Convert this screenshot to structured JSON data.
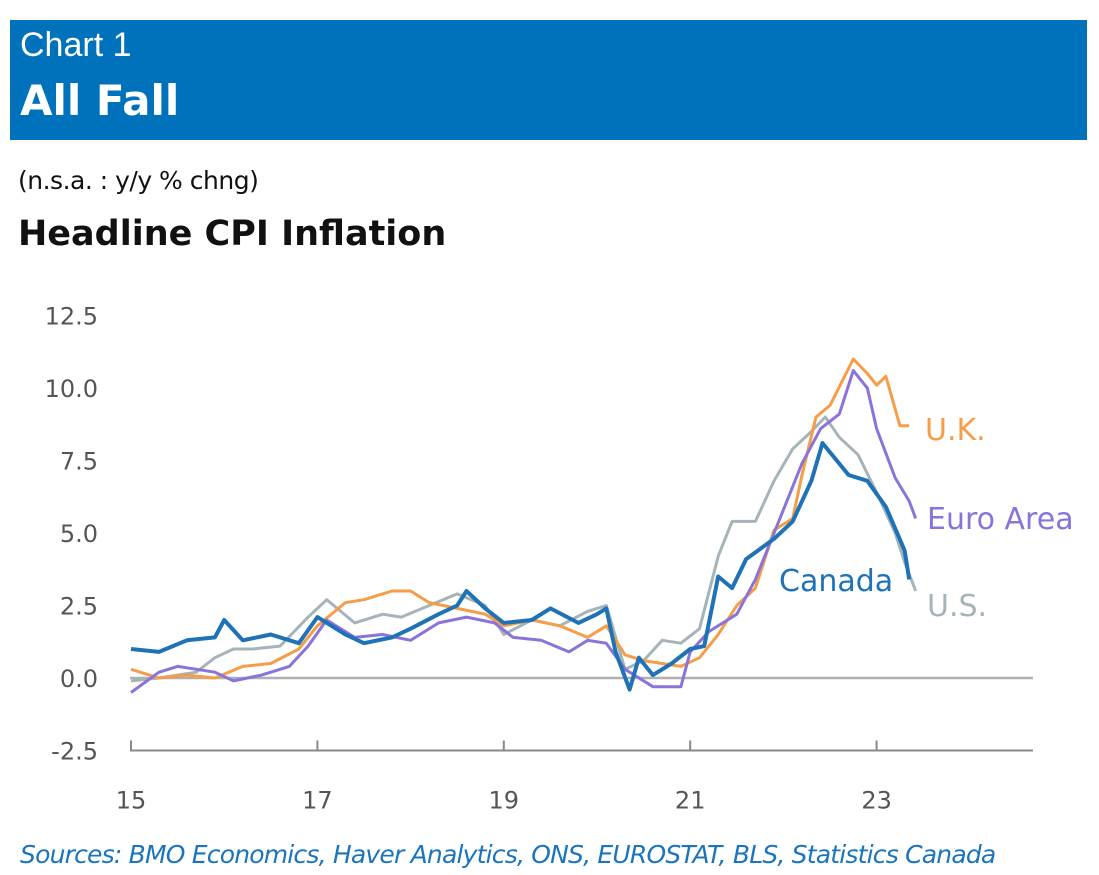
{
  "header": {
    "chart_number": "Chart 1",
    "headline": "All Fall"
  },
  "colors": {
    "header": "#0072bc",
    "uk": "#f59d48",
    "euro": "#8a73d9",
    "us": "#a5b4b9",
    "canada": "#1f72b6"
  },
  "sources": "Sources: BMO Economics, Haver Analytics, ONS, EUROSTAT, BLS, Statistics Canada",
  "chart_data": {
    "type": "line",
    "title": "Headline CPI Inflation",
    "subtitle": "(n.s.a. : y/y % chng)",
    "xlabel": "",
    "ylabel": "",
    "xlim": [
      2015,
      2024.7
    ],
    "ylim": [
      -2.5,
      12.5
    ],
    "yticks": [
      "12.5",
      "10.0",
      "7.5",
      "5.0",
      "2.5",
      "0.0",
      "-2.5"
    ],
    "ytick_values": [
      12.5,
      10,
      7.5,
      5,
      2.5,
      0,
      -2.5
    ],
    "xticks": [
      "15",
      "17",
      "19",
      "21",
      "23"
    ],
    "xtick_values": [
      2015,
      2017,
      2019,
      2021,
      2023
    ],
    "series": [
      {
        "name": "U.S.",
        "key": "us",
        "x": [
          2015.0,
          2015.3,
          2015.7,
          2015.9,
          2016.1,
          2016.3,
          2016.6,
          2016.9,
          2017.1,
          2017.4,
          2017.7,
          2017.9,
          2018.2,
          2018.5,
          2018.8,
          2019.0,
          2019.3,
          2019.6,
          2019.9,
          2020.1,
          2020.3,
          2020.5,
          2020.7,
          2020.9,
          2021.1,
          2021.3,
          2021.45,
          2021.7,
          2021.9,
          2022.1,
          2022.3,
          2022.45,
          2022.6,
          2022.8,
          2023.0,
          2023.2,
          2023.3,
          2023.42
        ],
        "y": [
          -0.1,
          0.0,
          0.2,
          0.7,
          1.0,
          1.0,
          1.1,
          2.1,
          2.7,
          1.9,
          2.2,
          2.1,
          2.5,
          2.9,
          2.5,
          1.5,
          2.0,
          1.8,
          2.3,
          2.5,
          0.3,
          0.6,
          1.3,
          1.2,
          1.7,
          4.2,
          5.4,
          5.4,
          6.8,
          7.9,
          8.5,
          9.0,
          8.3,
          7.7,
          6.4,
          5.0,
          4.0,
          3.0
        ]
      },
      {
        "name": "U.K.",
        "key": "uk",
        "x": [
          2015.0,
          2015.3,
          2015.6,
          2015.9,
          2016.2,
          2016.5,
          2016.8,
          2017.0,
          2017.3,
          2017.5,
          2017.8,
          2018.0,
          2018.2,
          2018.5,
          2018.8,
          2019.0,
          2019.3,
          2019.6,
          2019.9,
          2020.1,
          2020.3,
          2020.5,
          2020.7,
          2020.9,
          2021.1,
          2021.3,
          2021.5,
          2021.7,
          2021.9,
          2022.1,
          2022.2,
          2022.35,
          2022.5,
          2022.75,
          2022.9,
          2023.0,
          2023.1,
          2023.25,
          2023.35
        ],
        "y": [
          0.3,
          0.0,
          0.1,
          0.0,
          0.4,
          0.5,
          1.0,
          1.8,
          2.6,
          2.7,
          3.0,
          3.0,
          2.6,
          2.4,
          2.2,
          1.8,
          2.0,
          1.8,
          1.4,
          1.8,
          0.8,
          0.6,
          0.5,
          0.4,
          0.7,
          1.5,
          2.5,
          3.1,
          5.1,
          5.5,
          7.0,
          9.0,
          9.4,
          11.0,
          10.5,
          10.1,
          10.4,
          8.7,
          8.7
        ]
      },
      {
        "name": "Euro Area",
        "key": "euro",
        "x": [
          2015.0,
          2015.3,
          2015.5,
          2015.9,
          2016.1,
          2016.4,
          2016.7,
          2016.9,
          2017.1,
          2017.4,
          2017.7,
          2018.0,
          2018.3,
          2018.6,
          2018.9,
          2019.1,
          2019.4,
          2019.7,
          2019.9,
          2020.1,
          2020.3,
          2020.6,
          2020.9,
          2021.0,
          2021.2,
          2021.5,
          2021.7,
          2021.9,
          2022.2,
          2022.4,
          2022.6,
          2022.75,
          2022.9,
          2023.0,
          2023.2,
          2023.35,
          2023.42
        ],
        "y": [
          -0.5,
          0.2,
          0.4,
          0.2,
          -0.1,
          0.1,
          0.4,
          1.1,
          2.0,
          1.4,
          1.5,
          1.3,
          1.9,
          2.1,
          1.9,
          1.4,
          1.3,
          0.9,
          1.3,
          1.2,
          0.3,
          -0.3,
          -0.3,
          0.9,
          1.6,
          2.2,
          3.4,
          5.0,
          7.4,
          8.6,
          9.1,
          10.6,
          10.0,
          8.6,
          6.9,
          6.1,
          5.5
        ]
      },
      {
        "name": "Canada",
        "key": "canada",
        "x": [
          2015.0,
          2015.3,
          2015.6,
          2015.9,
          2016.0,
          2016.2,
          2016.5,
          2016.8,
          2017.0,
          2017.3,
          2017.5,
          2017.8,
          2018.0,
          2018.3,
          2018.5,
          2018.6,
          2018.8,
          2019.0,
          2019.3,
          2019.5,
          2019.8,
          2020.0,
          2020.1,
          2020.2,
          2020.35,
          2020.45,
          2020.6,
          2020.8,
          2021.0,
          2021.15,
          2021.3,
          2021.45,
          2021.6,
          2021.9,
          2022.1,
          2022.3,
          2022.42,
          2022.7,
          2022.9,
          2023.1,
          2023.3,
          2023.35
        ],
        "y": [
          1.0,
          0.9,
          1.3,
          1.4,
          2.0,
          1.3,
          1.5,
          1.2,
          2.1,
          1.5,
          1.2,
          1.4,
          1.7,
          2.2,
          2.5,
          3.0,
          2.4,
          1.9,
          2.0,
          2.4,
          1.9,
          2.2,
          2.4,
          0.9,
          -0.4,
          0.7,
          0.1,
          0.5,
          1.0,
          1.1,
          3.5,
          3.1,
          4.1,
          4.8,
          5.4,
          6.8,
          8.1,
          7.0,
          6.8,
          5.9,
          4.4,
          3.4
        ]
      }
    ],
    "labels": {
      "uk": "U.K.",
      "euro": "Euro Area",
      "canada": "Canada",
      "us": "U.S."
    },
    "grid": false,
    "zero_line": true,
    "legend": "inline-right"
  }
}
